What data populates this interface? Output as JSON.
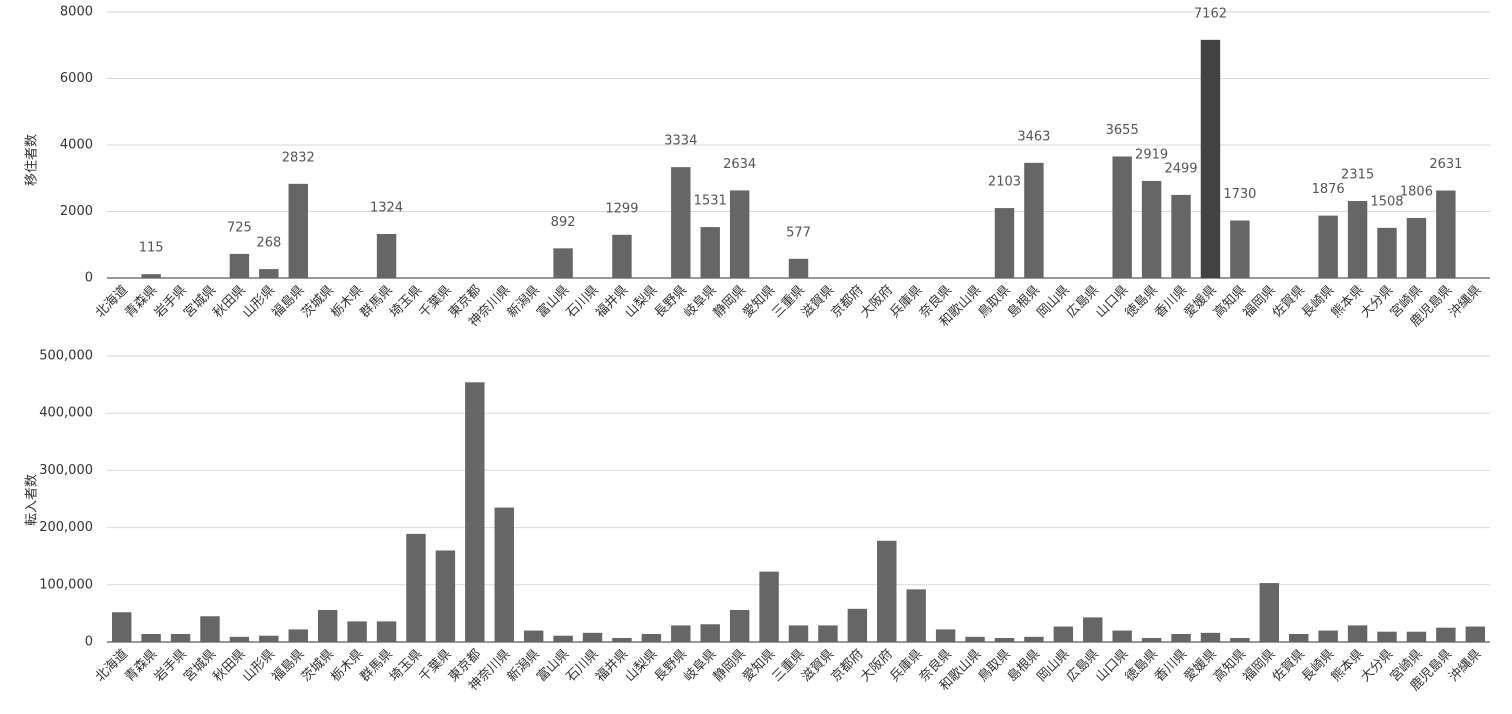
{
  "chart_data": [
    {
      "type": "bar",
      "y_label": "移住者数",
      "categories": [
        "北海道",
        "青森県",
        "岩手県",
        "宮城県",
        "秋田県",
        "山形県",
        "福島県",
        "茨城県",
        "栃木県",
        "群馬県",
        "埼玉県",
        "千葉県",
        "東京都",
        "神奈川県",
        "新潟県",
        "富山県",
        "石川県",
        "福井県",
        "山梨県",
        "長野県",
        "岐阜県",
        "静岡県",
        "愛知県",
        "三重県",
        "滋賀県",
        "京都府",
        "大阪府",
        "兵庫県",
        "奈良県",
        "和歌山県",
        "鳥取県",
        "島根県",
        "岡山県",
        "広島県",
        "山口県",
        "徳島県",
        "香川県",
        "愛媛県",
        "高知県",
        "福岡県",
        "佐賀県",
        "長崎県",
        "熊本県",
        "大分県",
        "宮崎県",
        "鹿児島県",
        "沖縄県"
      ],
      "values": [
        null,
        115,
        null,
        null,
        725,
        268,
        2832,
        null,
        null,
        1324,
        null,
        null,
        null,
        null,
        null,
        892,
        null,
        1299,
        null,
        3334,
        1531,
        2634,
        null,
        577,
        null,
        null,
        null,
        null,
        null,
        null,
        2103,
        3463,
        null,
        null,
        3655,
        2919,
        2499,
        7162,
        1730,
        null,
        null,
        1876,
        2315,
        1508,
        1806,
        2631,
        null
      ],
      "colors": [
        "#666666",
        "#666666",
        "#666666",
        "#666666",
        "#666666",
        "#666666",
        "#666666",
        "#666666",
        "#666666",
        "#666666",
        "#666666",
        "#666666",
        "#666666",
        "#666666",
        "#666666",
        "#666666",
        "#666666",
        "#666666",
        "#666666",
        "#666666",
        "#666666",
        "#666666",
        "#666666",
        "#666666",
        "#666666",
        "#666666",
        "#666666",
        "#666666",
        "#666666",
        "#666666",
        "#666666",
        "#666666",
        "#666666",
        "#666666",
        "#666666",
        "#666666",
        "#666666",
        "#424242",
        "#666666",
        "#666666",
        "#666666",
        "#666666",
        "#666666",
        "#666666",
        "#666666",
        "#666666",
        "#666666"
      ],
      "show_value_labels": true,
      "ylim": [
        0,
        8000
      ],
      "yticks": [
        0,
        2000,
        4000,
        6000,
        8000
      ],
      "grid": true
    },
    {
      "type": "bar",
      "y_label": "転入者数",
      "categories": [
        "北海道",
        "青森県",
        "岩手県",
        "宮城県",
        "秋田県",
        "山形県",
        "福島県",
        "茨城県",
        "栃木県",
        "群馬県",
        "埼玉県",
        "千葉県",
        "東京都",
        "神奈川県",
        "新潟県",
        "富山県",
        "石川県",
        "福井県",
        "山梨県",
        "長野県",
        "岐阜県",
        "静岡県",
        "愛知県",
        "三重県",
        "滋賀県",
        "京都府",
        "大阪府",
        "兵庫県",
        "奈良県",
        "和歌山県",
        "鳥取県",
        "島根県",
        "岡山県",
        "広島県",
        "山口県",
        "徳島県",
        "香川県",
        "愛媛県",
        "高知県",
        "福岡県",
        "佐賀県",
        "長崎県",
        "熊本県",
        "大分県",
        "宮崎県",
        "鹿児島県",
        "沖縄県"
      ],
      "values": [
        52000,
        14000,
        14000,
        45000,
        9000,
        11000,
        22000,
        56000,
        36000,
        36000,
        189000,
        160000,
        454000,
        235000,
        20000,
        11000,
        16000,
        7000,
        14000,
        29000,
        31000,
        56000,
        123000,
        29000,
        29000,
        58000,
        177000,
        92000,
        22000,
        9000,
        7000,
        9000,
        27000,
        43000,
        20000,
        7000,
        14000,
        16000,
        7000,
        103000,
        14000,
        20000,
        29000,
        18000,
        18000,
        25000,
        27000
      ],
      "color": "#666666",
      "ylim": [
        0,
        500000
      ],
      "yticks": [
        0,
        {
          "value": 100000,
          "label": "100,000"
        },
        {
          "value": 200000,
          "label": "200,000"
        },
        {
          "value": 300000,
          "label": "300,000"
        },
        {
          "value": 400000,
          "label": "400,000"
        },
        {
          "value": 500000,
          "label": "500,000"
        }
      ],
      "grid": true
    }
  ]
}
